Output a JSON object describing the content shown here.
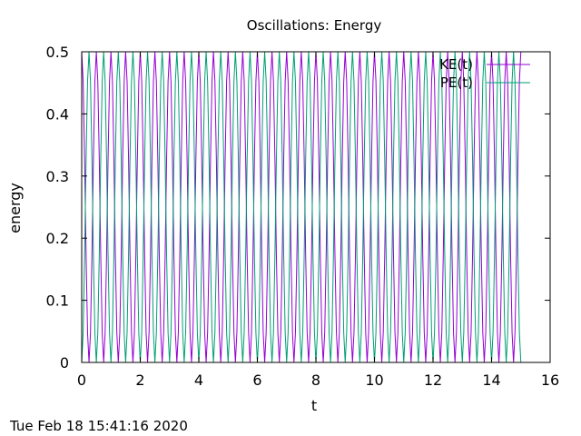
{
  "chart_data": {
    "type": "line",
    "title": "Oscillations: Energy",
    "xlabel": "t",
    "ylabel": "energy",
    "xlim": [
      0,
      16
    ],
    "ylim": [
      0,
      0.5
    ],
    "x_ticks": [
      "0",
      "2",
      "4",
      "6",
      "8",
      "10",
      "12",
      "14",
      "16"
    ],
    "y_ticks": [
      "0",
      "0.1",
      "0.2",
      "0.3",
      "0.4",
      "0.5"
    ],
    "grid": false,
    "legend_position": "top-right",
    "t_end": 15,
    "sample_step": 0.05,
    "series": [
      {
        "name": "KE(t)",
        "color": "#9400d3",
        "formula": "0.5*cos^2(2*pi*t)"
      },
      {
        "name": "PE(t)",
        "color": "#009e73",
        "formula": "0.5*sin^2(2*pi*t)"
      }
    ]
  },
  "timestamp": "Tue Feb 18 15:41:16 2020"
}
